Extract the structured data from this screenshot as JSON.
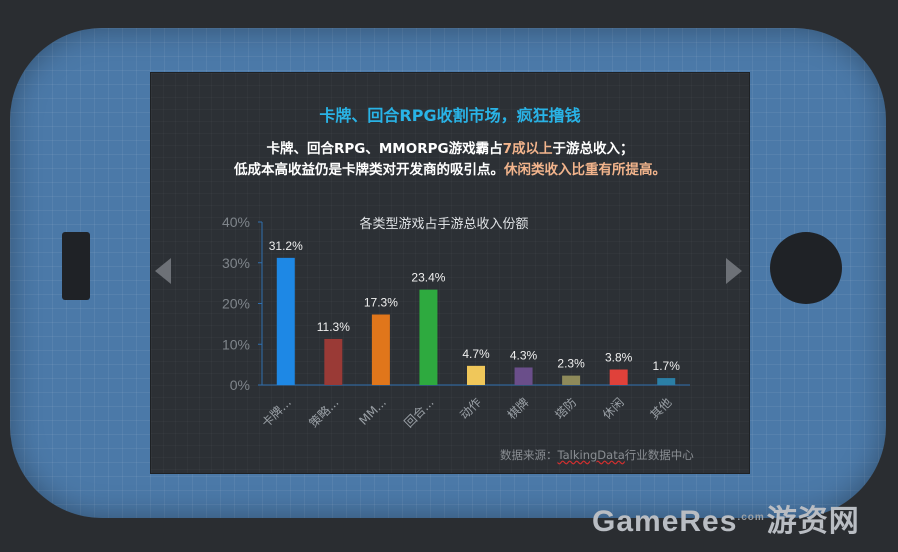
{
  "headline": "卡牌、回合RPG收割市场，疯狂撸钱",
  "subtitle": {
    "line1_a": "卡牌、回合RPG、MMORPG游戏霸占",
    "line1_highlight": "7成以上",
    "line1_b": "于游总收入；",
    "line2_a": "低成本高收益仍是卡牌类对开发商的吸引点。",
    "line2_highlight": "休闲类收入比重有所提高。"
  },
  "source": {
    "prefix": "数据来源：",
    "name": "TalkingData",
    "suffix": "行业数据中心"
  },
  "watermark": {
    "brand": "GameRes",
    "dotcom": ".com",
    "cn": "游资网"
  },
  "chart_data": {
    "type": "bar",
    "title": "各类型游戏占手游总收入份额",
    "categories": [
      "卡牌...",
      "策略...",
      "MM...",
      "回合...",
      "动作",
      "棋牌",
      "塔防",
      "休闲",
      "其他"
    ],
    "values": [
      31.2,
      11.3,
      17.3,
      23.4,
      4.7,
      4.3,
      2.3,
      3.8,
      1.7
    ],
    "value_labels": [
      "31.2%",
      "11.3%",
      "17.3%",
      "23.4%",
      "4.7%",
      "4.3%",
      "2.3%",
      "3.8%",
      "1.7%"
    ],
    "colors": [
      "#1e88e5",
      "#9a3a36",
      "#e0761b",
      "#2eaa3f",
      "#f0c75a",
      "#6a4e8a",
      "#8e8a5a",
      "#e0413a",
      "#2b7fa6"
    ],
    "ylim": [
      0,
      40
    ],
    "yticks": [
      0,
      10,
      20,
      30,
      40
    ],
    "ytick_labels": [
      "0%",
      "10%",
      "20%",
      "30%",
      "40%"
    ],
    "xlabel": "",
    "ylabel": "",
    "grid": false,
    "legend": "none"
  }
}
